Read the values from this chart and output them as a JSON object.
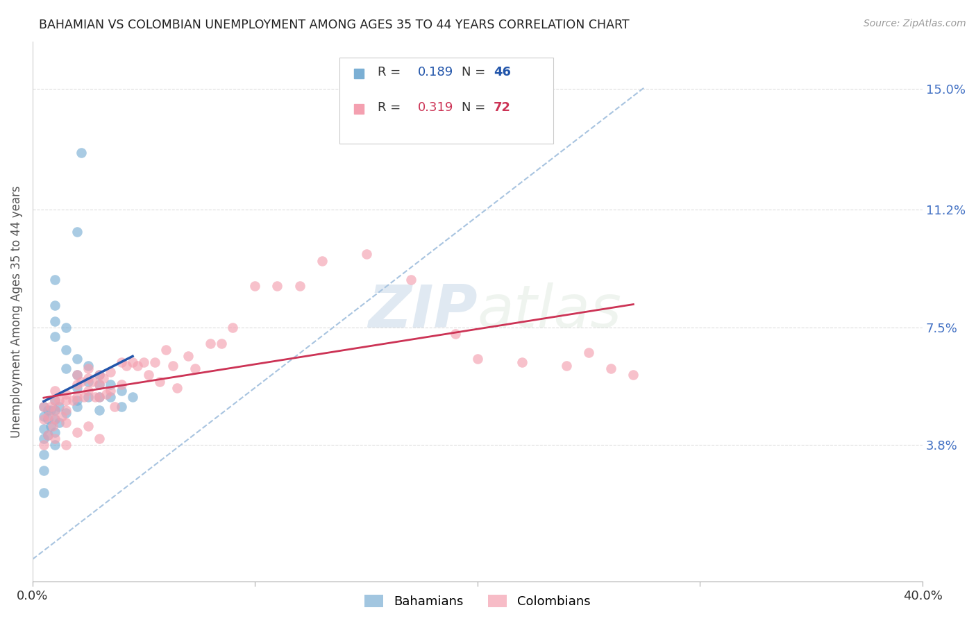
{
  "title": "BAHAMIAN VS COLOMBIAN UNEMPLOYMENT AMONG AGES 35 TO 44 YEARS CORRELATION CHART",
  "source": "Source: ZipAtlas.com",
  "ylabel": "Unemployment Among Ages 35 to 44 years",
  "xlim": [
    0.0,
    0.4
  ],
  "ylim": [
    -0.005,
    0.165
  ],
  "xticklabels": [
    "0.0%",
    "40.0%"
  ],
  "ytick_positions": [
    0.038,
    0.075,
    0.112,
    0.15
  ],
  "ytick_labels": [
    "3.8%",
    "7.5%",
    "11.2%",
    "15.0%"
  ],
  "right_ytick_color": "#4472c4",
  "bahamian_color": "#7bafd4",
  "colombian_color": "#f4a0b0",
  "trendline_blue_color": "#2255aa",
  "trendline_pink_color": "#cc3355",
  "dashed_line_color": "#a8c4e0",
  "watermark_zip": "ZIP",
  "watermark_atlas": "atlas",
  "bahamian_x": [
    0.022,
    0.02,
    0.01,
    0.01,
    0.01,
    0.01,
    0.015,
    0.015,
    0.015,
    0.02,
    0.02,
    0.02,
    0.02,
    0.025,
    0.025,
    0.025,
    0.03,
    0.03,
    0.03,
    0.03,
    0.035,
    0.035,
    0.04,
    0.04,
    0.045,
    0.005,
    0.005,
    0.005,
    0.005,
    0.005,
    0.005,
    0.005,
    0.007,
    0.007,
    0.007,
    0.008,
    0.008,
    0.01,
    0.01,
    0.01,
    0.01,
    0.01,
    0.012,
    0.012,
    0.015,
    0.02
  ],
  "bahamian_y": [
    0.13,
    0.105,
    0.09,
    0.082,
    0.077,
    0.072,
    0.075,
    0.068,
    0.062,
    0.065,
    0.06,
    0.056,
    0.052,
    0.063,
    0.058,
    0.053,
    0.06,
    0.057,
    0.053,
    0.049,
    0.057,
    0.053,
    0.055,
    0.05,
    0.053,
    0.05,
    0.047,
    0.043,
    0.04,
    0.035,
    0.03,
    0.023,
    0.049,
    0.046,
    0.041,
    0.049,
    0.044,
    0.052,
    0.049,
    0.046,
    0.042,
    0.038,
    0.05,
    0.045,
    0.048,
    0.05
  ],
  "colombian_x": [
    0.005,
    0.005,
    0.005,
    0.007,
    0.007,
    0.008,
    0.009,
    0.01,
    0.01,
    0.01,
    0.01,
    0.01,
    0.012,
    0.013,
    0.015,
    0.015,
    0.015,
    0.015,
    0.015,
    0.018,
    0.02,
    0.02,
    0.02,
    0.02,
    0.022,
    0.023,
    0.025,
    0.025,
    0.025,
    0.025,
    0.027,
    0.028,
    0.03,
    0.03,
    0.03,
    0.03,
    0.032,
    0.033,
    0.035,
    0.035,
    0.037,
    0.04,
    0.04,
    0.042,
    0.045,
    0.047,
    0.05,
    0.052,
    0.055,
    0.057,
    0.06,
    0.063,
    0.065,
    0.07,
    0.073,
    0.08,
    0.085,
    0.09,
    0.1,
    0.11,
    0.12,
    0.13,
    0.15,
    0.17,
    0.19,
    0.2,
    0.22,
    0.24,
    0.25,
    0.26,
    0.27
  ],
  "colombian_y": [
    0.05,
    0.046,
    0.038,
    0.047,
    0.041,
    0.05,
    0.044,
    0.055,
    0.052,
    0.049,
    0.046,
    0.04,
    0.052,
    0.047,
    0.054,
    0.052,
    0.049,
    0.045,
    0.038,
    0.052,
    0.06,
    0.057,
    0.053,
    0.042,
    0.058,
    0.053,
    0.062,
    0.059,
    0.055,
    0.044,
    0.058,
    0.053,
    0.06,
    0.057,
    0.053,
    0.04,
    0.059,
    0.054,
    0.061,
    0.055,
    0.05,
    0.064,
    0.057,
    0.063,
    0.064,
    0.063,
    0.064,
    0.06,
    0.064,
    0.058,
    0.068,
    0.063,
    0.056,
    0.066,
    0.062,
    0.07,
    0.07,
    0.075,
    0.088,
    0.088,
    0.088,
    0.096,
    0.098,
    0.09,
    0.073,
    0.065,
    0.064,
    0.063,
    0.067,
    0.062,
    0.06
  ]
}
